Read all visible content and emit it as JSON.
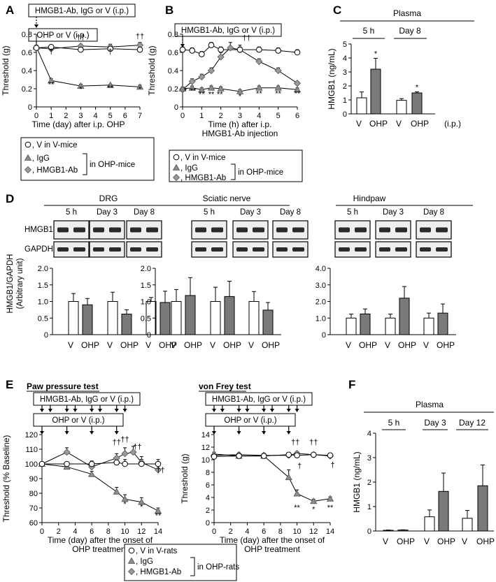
{
  "colors": {
    "igg": "#8c8c8c",
    "ab": "#9a9a9a",
    "vehicle": "#ffffff",
    "bar_ohp": "#7a7a7a",
    "blot_dark": "#2a2a2a",
    "blot_bg": "#d8d8d8"
  },
  "panels": [
    "A",
    "B",
    "C",
    "D",
    "E",
    "F"
  ],
  "legend_top": {
    "v": "V in V-mice",
    "igg": "IgG",
    "ab": "HMGB1-Ab",
    "group": "in OHP-mice"
  },
  "legend_bottom": {
    "v": "V in V-rats",
    "igg": "IgG",
    "ab": "HMGB1-Ab",
    "group": "in OHP-rats"
  },
  "chart_data": [
    {
      "id": "A",
      "type": "line",
      "box_top": "HMGB1-Ab, IgG or V (i.p.)",
      "box_bottom": "OHP or V (i.p.)",
      "xlabel": "Time (day) after i.p. OHP",
      "ylabel": "Threshold (g)",
      "xlim": [
        0,
        7
      ],
      "ylim": [
        0,
        0.8
      ],
      "xticks": [
        0,
        1,
        2,
        3,
        4,
        5,
        6,
        7
      ],
      "yticks": [
        0,
        0.2,
        0.4,
        0.6,
        0.8
      ],
      "series": [
        {
          "key": "v",
          "x": [
            0,
            1,
            3,
            5,
            7
          ],
          "y": [
            0.65,
            0.66,
            0.63,
            0.64,
            0.63
          ],
          "err": [
            0.02,
            0.02,
            0.02,
            0.02,
            0.02
          ]
        },
        {
          "key": "igg",
          "x": [
            0,
            1,
            3,
            5,
            7
          ],
          "y": [
            0.66,
            0.29,
            0.23,
            0.24,
            0.22
          ],
          "err": [
            0.02,
            0.02,
            0.02,
            0.01,
            0.02
          ]
        },
        {
          "key": "ab",
          "x": [
            0,
            1,
            3,
            5,
            7
          ],
          "y": [
            0.65,
            0.64,
            0.67,
            0.66,
            0.68
          ],
          "err": [
            0.02,
            0.03,
            0.02,
            0.03,
            0.03
          ]
        }
      ],
      "annotations": [
        {
          "x": 1,
          "y": 0.22,
          "text": "**"
        },
        {
          "x": 3,
          "y": 0.17,
          "text": "*"
        },
        {
          "x": 5,
          "y": 0.18,
          "text": "**"
        },
        {
          "x": 7,
          "y": 0.17,
          "text": "*"
        },
        {
          "x": 1,
          "y": 0.58,
          "text": "†"
        },
        {
          "x": 3,
          "y": 0.74,
          "text": "††"
        },
        {
          "x": 5,
          "y": 0.58,
          "text": "†"
        },
        {
          "x": 7,
          "y": 0.75,
          "text": "††"
        }
      ]
    },
    {
      "id": "B",
      "type": "line",
      "box_top": "HMGB1-Ab, IgG or V (i.p.)",
      "xlabel": "Time (h) after i.p.",
      "xlabel2": "HMGB1-Ab injection",
      "ylabel": "Threshold (g)",
      "xlim": [
        0,
        6
      ],
      "ylim": [
        0,
        0.8
      ],
      "xticks": [
        0,
        1,
        2,
        3,
        4,
        5,
        6
      ],
      "yticks": [
        0,
        0.2,
        0.4,
        0.6,
        0.8
      ],
      "series": [
        {
          "key": "v",
          "x": [
            0,
            0.5,
            1,
            1.5,
            2,
            3,
            4,
            5,
            6
          ],
          "y": [
            0.63,
            0.62,
            0.58,
            0.68,
            0.63,
            0.63,
            0.63,
            0.62,
            0.6
          ],
          "err": [
            0.03,
            0.03,
            0.03,
            0.03,
            0.03,
            0.03,
            0.03,
            0.03,
            0.03
          ]
        },
        {
          "key": "igg",
          "x": [
            0,
            0.5,
            1,
            1.5,
            2,
            3,
            4,
            5,
            6
          ],
          "y": [
            0.2,
            0.21,
            0.19,
            0.21,
            0.2,
            0.17,
            0.21,
            0.21,
            0.19
          ],
          "err": [
            0.02,
            0.02,
            0.02,
            0.02,
            0.02,
            0.02,
            0.02,
            0.02,
            0.02
          ]
        },
        {
          "key": "ab",
          "x": [
            0,
            0.5,
            1,
            1.5,
            2,
            2.5,
            3,
            4,
            5,
            6
          ],
          "y": [
            0.19,
            0.28,
            0.33,
            0.4,
            0.55,
            0.65,
            0.63,
            0.5,
            0.4,
            0.26
          ],
          "err": [
            0.02,
            0.03,
            0.03,
            0.03,
            0.05,
            0.06,
            0.05,
            0.03,
            0.03,
            0.02
          ]
        }
      ],
      "annotations": [
        {
          "x": 0.15,
          "y": 0.15,
          "text": "*"
        },
        {
          "x": 0.55,
          "y": 0.15,
          "text": "**"
        },
        {
          "x": 1,
          "y": 0.11,
          "text": "**"
        },
        {
          "x": 1.5,
          "y": 0.11,
          "text": "**"
        },
        {
          "x": 1.95,
          "y": 0.11,
          "text": "**"
        },
        {
          "x": 3,
          "y": 0.09,
          "text": "*"
        },
        {
          "x": 4,
          "y": 0.12,
          "text": "**"
        },
        {
          "x": 5,
          "y": 0.12,
          "text": "**"
        },
        {
          "x": 6,
          "y": 0.12,
          "text": "**"
        },
        {
          "x": 3.35,
          "y": 0.73,
          "text": "††"
        }
      ]
    },
    {
      "id": "C",
      "type": "bar",
      "title": "Plasma",
      "groups": [
        "5 h",
        "Day 8"
      ],
      "categories": [
        "V",
        "OHP",
        "V",
        "OHP"
      ],
      "unit": "(i.p.)",
      "ylabel": "HMGB1 (ng/mL)",
      "ylim": [
        0,
        5
      ],
      "yticks": [
        0,
        1,
        2,
        3,
        4,
        5
      ],
      "values": [
        1.15,
        3.2,
        0.97,
        1.5
      ],
      "err": [
        0.42,
        0.78,
        0.12,
        0.08
      ],
      "sig": [
        "",
        "*",
        "",
        "*"
      ]
    },
    {
      "id": "D",
      "type": "bar",
      "ylabel": "HMGB1/GAPDH",
      "ylabel2": "(Arbitrary unit)",
      "rows": [
        "HMGB1",
        "GAPDH"
      ],
      "timepoints": [
        "5 h",
        "Day 3",
        "Day 8"
      ],
      "categories": [
        "V",
        "OHP"
      ],
      "tissues": [
        {
          "name": "DRG",
          "ylim": [
            0,
            2
          ],
          "yticks": [
            "0",
            "0.5",
            "1.0",
            "1.5",
            "2.0"
          ],
          "values": [
            [
              1.0,
              0.9
            ],
            [
              1.0,
              0.62
            ],
            [
              1.0,
              0.97
            ]
          ],
          "err": [
            [
              0.24,
              0.19
            ],
            [
              0.28,
              0.13
            ],
            [
              0.12,
              0.34
            ]
          ]
        },
        {
          "name": "Sciatic nerve",
          "ylim": [
            0,
            2.0
          ],
          "yticks": [
            "0",
            "0.5",
            "1.0",
            "1.5",
            "2.0"
          ],
          "values": [
            [
              1.0,
              1.18
            ],
            [
              1.0,
              1.15
            ],
            [
              1.0,
              0.74
            ]
          ],
          "err": [
            [
              0.36,
              0.54
            ],
            [
              0.43,
              0.46
            ],
            [
              0.3,
              0.23
            ]
          ]
        },
        {
          "name": "Hindpaw",
          "ylim": [
            0,
            4.0
          ],
          "yticks": [
            "0",
            "1.0",
            "2.0",
            "3.0",
            "4.0"
          ],
          "values": [
            [
              1.0,
              1.25
            ],
            [
              1.0,
              2.2
            ],
            [
              1.0,
              1.3
            ]
          ],
          "err": [
            [
              0.24,
              0.3
            ],
            [
              0.24,
              0.7
            ],
            [
              0.3,
              0.55
            ]
          ]
        }
      ]
    },
    {
      "id": "E1",
      "type": "line",
      "title": "Paw pressure test",
      "box_top": "HMGB1-Ab, IgG or V (i.p.)",
      "box_bottom": "OHP or V (i.p.)",
      "xlabel": "Time (day) after the onset of",
      "xlabel2": "OHP treatment",
      "ylabel": "Threshold (% Baseline)",
      "xlim": [
        0,
        14
      ],
      "ylim": [
        60,
        120
      ],
      "xticks": [
        0,
        2,
        4,
        6,
        8,
        10,
        12,
        14
      ],
      "yticks": [
        60,
        70,
        80,
        90,
        100,
        110,
        120
      ],
      "series": [
        {
          "key": "v",
          "x": [
            0,
            3,
            6,
            9,
            10,
            12,
            14
          ],
          "y": [
            100,
            100,
            100,
            101,
            100,
            100,
            100
          ],
          "err": [
            1,
            1,
            2,
            3,
            3,
            3,
            3
          ]
        },
        {
          "key": "igg",
          "x": [
            0,
            3,
            6,
            9,
            10,
            12,
            14
          ],
          "y": [
            100,
            98,
            93,
            81,
            76,
            74,
            68
          ],
          "err": [
            1,
            2,
            2,
            3,
            3,
            3,
            2
          ]
        },
        {
          "key": "ab",
          "x": [
            0,
            3,
            6,
            9,
            10,
            11,
            12,
            14
          ],
          "y": [
            100,
            108,
            98,
            104,
            107,
            108,
            101,
            96
          ],
          "err": [
            1,
            3,
            2,
            3,
            4,
            4,
            4,
            3
          ]
        }
      ],
      "annotations": [
        {
          "x": 10,
          "y": 71,
          "text": "*"
        },
        {
          "x": 12,
          "y": 69,
          "text": "*"
        },
        {
          "x": 14,
          "y": 63,
          "text": "**"
        },
        {
          "x": 9,
          "y": 113,
          "text": "††"
        },
        {
          "x": 10,
          "y": 115,
          "text": "††"
        },
        {
          "x": 11.5,
          "y": 110,
          "text": "††"
        },
        {
          "x": 14.3,
          "y": 94,
          "text": "††"
        }
      ]
    },
    {
      "id": "E2",
      "type": "line",
      "title": "von Frey test",
      "box_top": "HMGB1-Ab, IgG or V (i.p.)",
      "box_bottom": "OHP or V (i.p.)",
      "xlabel": "Time (day) after the onset of",
      "xlabel2": "OHP treatment",
      "ylabel": "Threshold (g)",
      "xlim": [
        0,
        14
      ],
      "ylim": [
        0,
        14
      ],
      "xticks": [
        0,
        2,
        4,
        6,
        8,
        10,
        12,
        14
      ],
      "yticks": [
        0,
        2,
        4,
        6,
        8,
        10,
        12,
        14
      ],
      "series": [
        {
          "key": "v",
          "x": [
            0,
            3,
            6,
            9,
            10,
            12,
            14
          ],
          "y": [
            10.5,
            10.6,
            10.6,
            10.8,
            10.7,
            10.8,
            10.7
          ],
          "err": [
            0.2,
            0.3,
            0.3,
            0.3,
            0.3,
            0.3,
            0.3
          ]
        },
        {
          "key": "igg",
          "x": [
            0,
            3,
            6,
            9,
            10,
            12,
            14
          ],
          "y": [
            10.9,
            10.6,
            10.6,
            7.2,
            4.6,
            3.4,
            3.8
          ],
          "err": [
            0.3,
            0.3,
            0.4,
            1.2,
            0.6,
            0.3,
            0.3
          ]
        },
        {
          "key": "ab",
          "x": [
            0,
            3,
            6,
            9,
            10,
            12,
            14
          ],
          "y": [
            10.7,
            10.8,
            10.7,
            10.7,
            11.0,
            10.8,
            10.6
          ],
          "err": [
            0.3,
            0.3,
            0.3,
            0.3,
            0.3,
            0.3,
            0.3
          ]
        }
      ],
      "annotations": [
        {
          "x": 10,
          "y": 2.0,
          "text": "**"
        },
        {
          "x": 12,
          "y": 1.7,
          "text": "*"
        },
        {
          "x": 14,
          "y": 2.0,
          "text": "**"
        },
        {
          "x": 10.3,
          "y": 8.6,
          "text": "†"
        },
        {
          "x": 9.8,
          "y": 12.4,
          "text": "††"
        },
        {
          "x": 12,
          "y": 12.4,
          "text": "††"
        },
        {
          "x": 14.3,
          "y": 8.8,
          "text": "†"
        }
      ]
    },
    {
      "id": "F",
      "type": "bar",
      "title": "Plasma",
      "groups": [
        "5 h",
        "Day 3",
        "Day 12"
      ],
      "categories": [
        "V",
        "OHP",
        "V",
        "OHP",
        "V",
        "OHP"
      ],
      "ylabel": "HMGB1 (ng/mL)",
      "ylim": [
        0,
        4
      ],
      "yticks": [
        0,
        1,
        2,
        3,
        4
      ],
      "values": [
        0.03,
        0.04,
        0.58,
        1.62,
        0.52,
        1.85
      ],
      "err": [
        0.01,
        0.01,
        0.28,
        0.75,
        0.32,
        0.85
      ]
    }
  ]
}
